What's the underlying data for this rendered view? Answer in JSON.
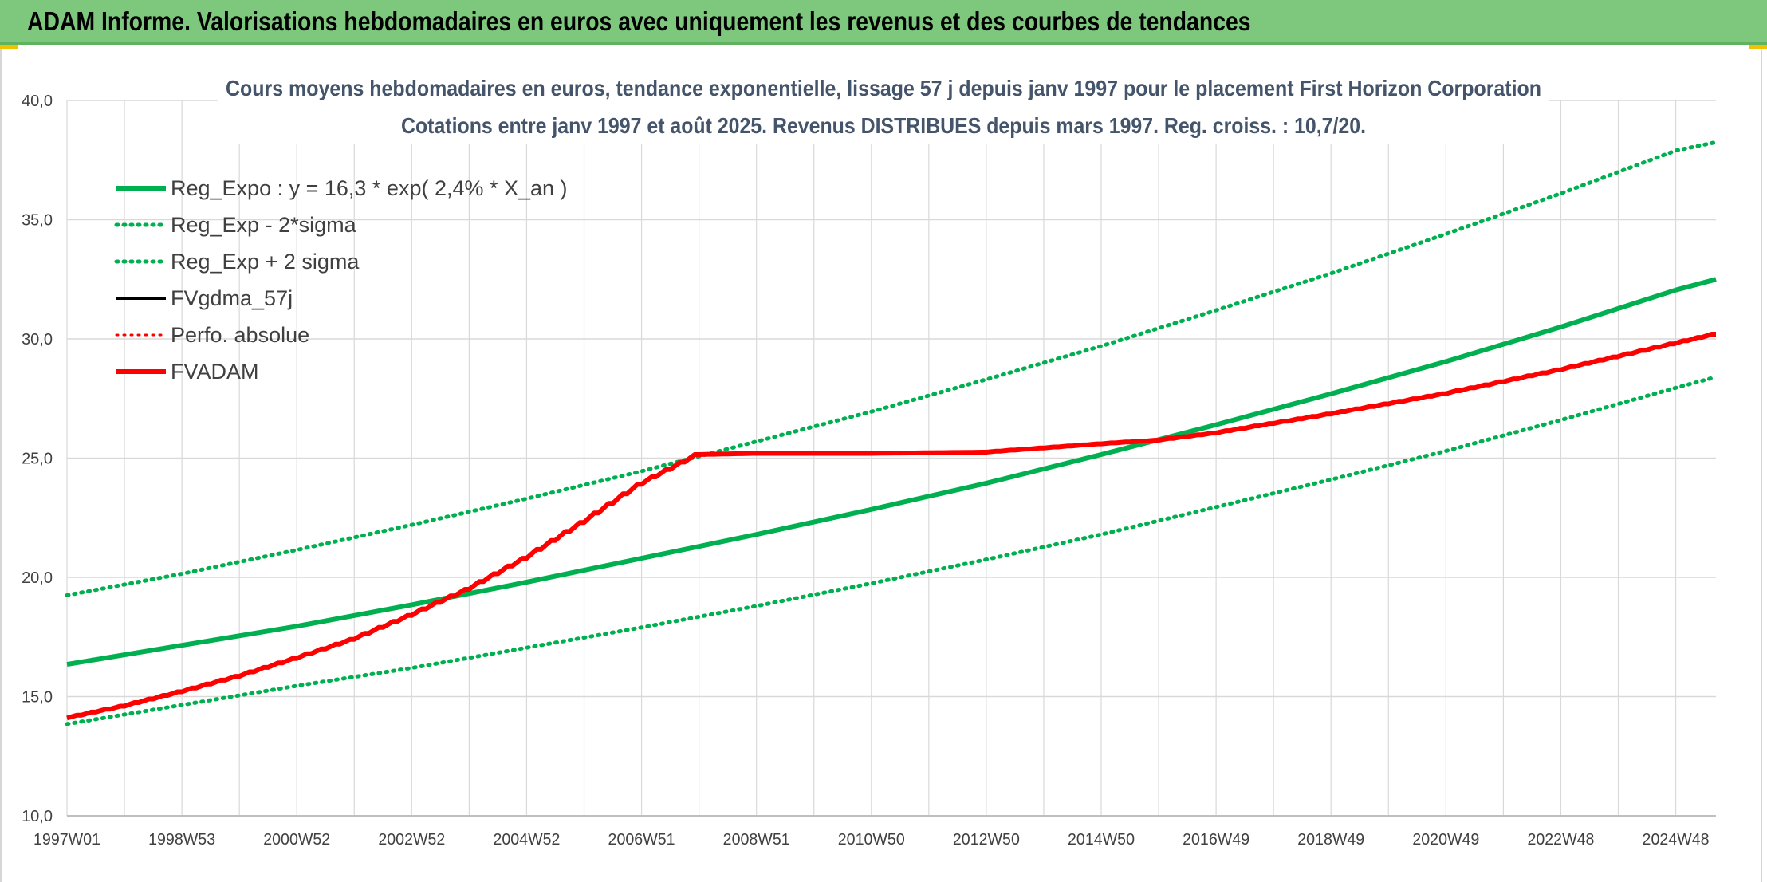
{
  "banner": {
    "title": "ADAM Informe. Valorisations hebdomadaires en euros avec uniquement les revenus et des courbes de tendances"
  },
  "colors": {
    "green": "#00b050",
    "red": "#ff0000",
    "black": "#000000",
    "banner": "#7ec87e",
    "grid": "#d9d9d9"
  },
  "chart_data": {
    "type": "line",
    "title": "Cours moyens hebdomadaires en euros, tendance exponentielle, lissage 57 j depuis janv 1997 pour le placement First Horizon Corporation",
    "subtitle": "Cotations entre janv 1997 et août 2025. Revenus DISTRIBUES depuis mars 1997. Reg. croiss. : 10,7/20.",
    "xlim": [
      1997.0,
      2025.7
    ],
    "ylim": [
      10,
      40
    ],
    "y_ticks": [
      "10,0",
      "15,0",
      "20,0",
      "25,0",
      "30,0",
      "35,0",
      "40,0"
    ],
    "x_ticks": [
      {
        "label": "1997W01",
        "x": 1997.0
      },
      {
        "label": "1998W53",
        "x": 1999.0
      },
      {
        "label": "2000W52",
        "x": 2001.0
      },
      {
        "label": "2002W52",
        "x": 2003.0
      },
      {
        "label": "2004W52",
        "x": 2005.0
      },
      {
        "label": "2006W51",
        "x": 2007.0
      },
      {
        "label": "2008W51",
        "x": 2009.0
      },
      {
        "label": "2010W50",
        "x": 2011.0
      },
      {
        "label": "2012W50",
        "x": 2013.0
      },
      {
        "label": "2014W50",
        "x": 2015.0
      },
      {
        "label": "2016W49",
        "x": 2017.0
      },
      {
        "label": "2018W49",
        "x": 2019.0
      },
      {
        "label": "2020W49",
        "x": 2021.0
      },
      {
        "label": "2022W48",
        "x": 2023.0
      },
      {
        "label": "2024W48",
        "x": 2025.0
      }
    ],
    "grid": true,
    "legend_position": "top-left",
    "series": [
      {
        "name": "Reg_Expo : y = 16,3 * exp( 2,4% *  X_an )",
        "style": "solid",
        "color": "#00b050",
        "width": 6,
        "x": [
          1997,
          1999,
          2001,
          2003,
          2005,
          2007,
          2009,
          2011,
          2013,
          2015,
          2017,
          2019,
          2021,
          2023,
          2025,
          2025.7
        ],
        "y": [
          16.35,
          17.15,
          17.95,
          18.85,
          19.8,
          20.8,
          21.8,
          22.85,
          23.95,
          25.15,
          26.4,
          27.7,
          29.05,
          30.5,
          32.05,
          32.5
        ]
      },
      {
        "name": "Reg_Exp - 2*sigma",
        "style": "dotted",
        "color": "#00b050",
        "width": 5,
        "x": [
          1997,
          1999,
          2001,
          2003,
          2005,
          2007,
          2009,
          2011,
          2013,
          2015,
          2017,
          2019,
          2021,
          2023,
          2025,
          2025.7
        ],
        "y": [
          13.85,
          14.65,
          15.45,
          16.2,
          17.05,
          17.9,
          18.8,
          19.75,
          20.75,
          21.8,
          22.95,
          24.1,
          25.3,
          26.6,
          27.95,
          28.4
        ]
      },
      {
        "name": "Reg_Exp + 2 sigma",
        "style": "dotted",
        "color": "#00b050",
        "width": 5,
        "x": [
          1997,
          1999,
          2001,
          2003,
          2005,
          2007,
          2009,
          2011,
          2013,
          2015,
          2017,
          2019,
          2021,
          2023,
          2025,
          2025.7
        ],
        "y": [
          19.25,
          20.15,
          21.15,
          22.2,
          23.3,
          24.45,
          25.7,
          26.95,
          28.3,
          29.7,
          31.2,
          32.75,
          34.4,
          36.1,
          37.9,
          38.25
        ]
      },
      {
        "name": "FVgdma_57j",
        "style": "solid",
        "color": "#000000",
        "width": 4,
        "x": [],
        "y": []
      },
      {
        "name": "Perfo. absolue",
        "style": "dotted",
        "color": "#ff0000",
        "width": 3,
        "x": [],
        "y": []
      },
      {
        "name": "FVADAM",
        "style": "solid",
        "color": "#ff0000",
        "width": 6,
        "x": [
          1997,
          1998,
          1999,
          2000,
          2001,
          2002,
          2003,
          2004,
          2005,
          2006,
          2007,
          2008,
          2009,
          2011,
          2013,
          2015,
          2016,
          2017,
          2019,
          2021,
          2023,
          2025.7
        ],
        "y": [
          14.1,
          14.6,
          15.2,
          15.85,
          16.6,
          17.4,
          18.4,
          19.5,
          20.8,
          22.3,
          23.9,
          25.15,
          25.2,
          25.2,
          25.25,
          25.6,
          25.75,
          26.05,
          26.85,
          27.7,
          28.7,
          30.2
        ]
      }
    ]
  }
}
